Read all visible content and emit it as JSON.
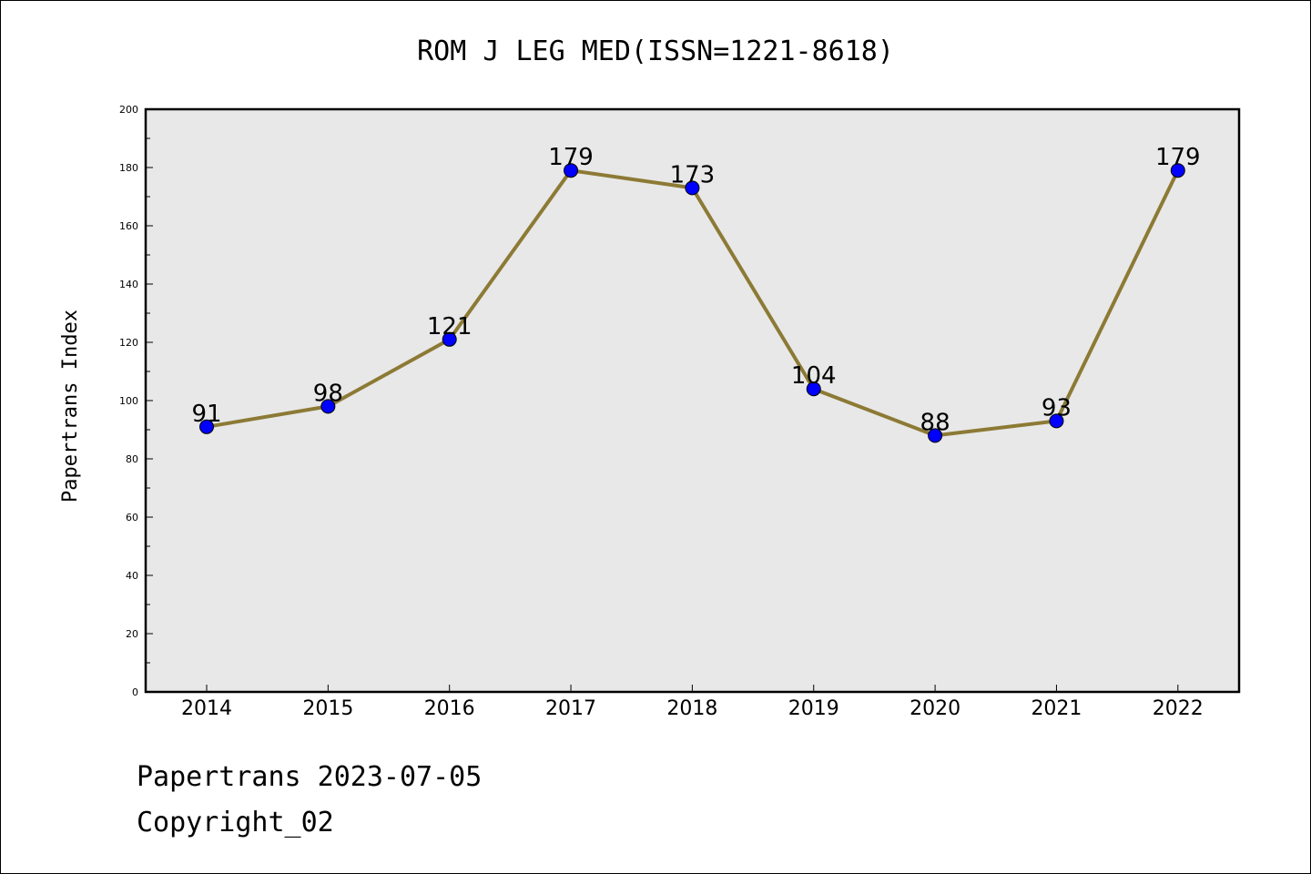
{
  "chart_data": {
    "type": "line",
    "title": "ROM J LEG MED(ISSN=1221-8618)",
    "ylabel": "Papertrans Index",
    "xlabel": "",
    "categories": [
      "2014",
      "2015",
      "2016",
      "2017",
      "2018",
      "2019",
      "2020",
      "2021",
      "2022"
    ],
    "series": [
      {
        "values": [
          91,
          98,
          121,
          179,
          173,
          104,
          88,
          93,
          179
        ]
      }
    ],
    "ylim": [
      0,
      200
    ],
    "yticks": [
      0,
      20,
      40,
      60,
      80,
      100,
      120,
      140,
      160,
      180,
      200
    ],
    "grid": false,
    "colors": {
      "line": "#8c7a35",
      "marker": "#0000ff",
      "plot_background": "#e8e8e8"
    }
  },
  "footer": {
    "date_line": "Papertrans 2023-07-05",
    "copyright": "Copyright_02"
  }
}
